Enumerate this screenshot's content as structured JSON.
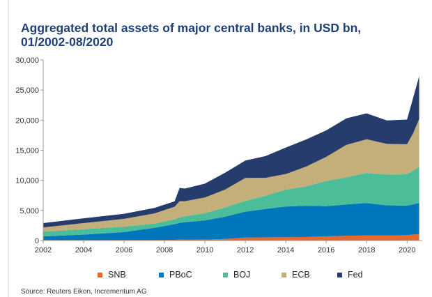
{
  "chart_data": {
    "type": "area",
    "stacked": true,
    "title_lines": [
      "Aggregated total assets of major central banks, in USD bn,",
      "01/2002-08/2020"
    ],
    "x": [
      2002.0,
      2004.0,
      2006.0,
      2007.5,
      2008.5,
      2008.75,
      2009.0,
      2010.0,
      2011.0,
      2012.0,
      2013.0,
      2014.0,
      2015.0,
      2016.0,
      2017.0,
      2018.0,
      2019.0,
      2020.0,
      2020.3,
      2020.6
    ],
    "xlim": [
      2002.0,
      2020.75
    ],
    "ylim": [
      0,
      30000
    ],
    "x_tick_labels": [
      "2002",
      "2004",
      "2006",
      "2008",
      "2010",
      "2012",
      "2014",
      "2016",
      "2018",
      "2020"
    ],
    "y_tick_labels": [
      "0",
      "5,000",
      "10,000",
      "15,000",
      "20,000",
      "25,000",
      "30,000"
    ],
    "series": [
      {
        "name": "SNB",
        "color": "#e8672d",
        "values": [
          80,
          90,
          100,
          110,
          120,
          140,
          130,
          150,
          270,
          500,
          530,
          550,
          580,
          700,
          800,
          830,
          850,
          900,
          1000,
          1050
        ]
      },
      {
        "name": "PBoC",
        "color": "#0076bd",
        "values": [
          600,
          900,
          1300,
          2000,
          2600,
          2800,
          2900,
          3200,
          3700,
          4300,
          4700,
          5100,
          5200,
          5000,
          5200,
          5400,
          5000,
          4900,
          5000,
          5200
        ]
      },
      {
        "name": "BOJ",
        "color": "#4cbd99",
        "values": [
          800,
          900,
          900,
          700,
          800,
          900,
          1000,
          1200,
          1500,
          1800,
          2200,
          2800,
          3200,
          4200,
          4500,
          5000,
          5100,
          5200,
          5600,
          6000
        ]
      },
      {
        "name": "ECB",
        "color": "#c4ae79",
        "values": [
          700,
          1000,
          1300,
          1700,
          2100,
          2700,
          2500,
          2600,
          3000,
          3800,
          3000,
          2600,
          3300,
          4000,
          5400,
          5600,
          5100,
          5000,
          6200,
          7950
        ]
      },
      {
        "name": "Fed",
        "color": "#253c6c",
        "values": [
          720,
          800,
          850,
          900,
          900,
          2200,
          2100,
          2300,
          2800,
          2900,
          3600,
          4400,
          4500,
          4400,
          4400,
          4300,
          3900,
          4100,
          5900,
          7100
        ]
      }
    ]
  },
  "source": "Source: Reuters Eikon, Incrementum AG"
}
